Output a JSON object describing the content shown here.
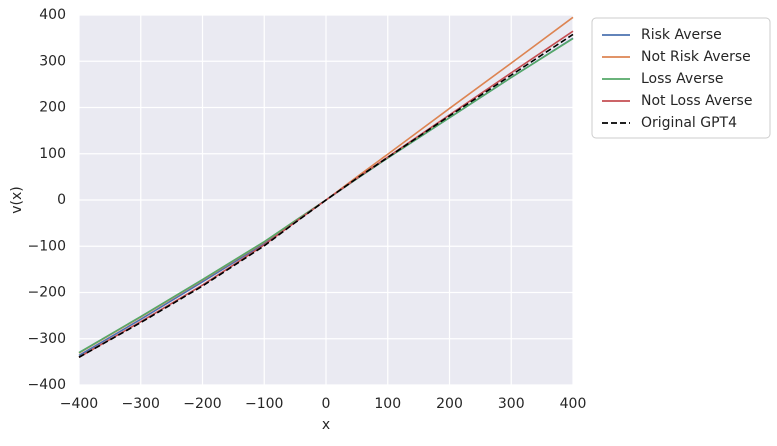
{
  "chart_data": {
    "type": "line",
    "xlabel": "x",
    "ylabel": "v(x)",
    "x": [
      -400,
      -300,
      -200,
      -100,
      -50,
      0,
      50,
      100,
      200,
      300,
      400
    ],
    "series": [
      {
        "name": "Risk Averse",
        "color": "#4c72b0",
        "linestyle": "solid",
        "values": [
          -336,
          -258,
          -177,
          -94,
          -46,
          0,
          46,
          91,
          178,
          265,
          350
        ]
      },
      {
        "name": "Not Risk Averse",
        "color": "#dd8452",
        "linestyle": "solid",
        "values": [
          -331,
          -253,
          -173,
          -91,
          -45,
          0,
          50,
          99,
          198,
          296,
          395
        ]
      },
      {
        "name": "Loss Averse",
        "color": "#55a868",
        "linestyle": "solid",
        "values": [
          -330,
          -252,
          -172,
          -90,
          -45,
          0,
          46,
          91,
          178,
          265,
          349
        ]
      },
      {
        "name": "Not Loss Averse",
        "color": "#c44e52",
        "linestyle": "solid",
        "values": [
          -340,
          -263,
          -184,
          -97,
          -48,
          0,
          47,
          93,
          184,
          275,
          365
        ]
      },
      {
        "name": "Original GPT4",
        "color": "#000000",
        "linestyle": "dashed",
        "values": [
          -340,
          -265,
          -186,
          -99,
          -49,
          0,
          47,
          92,
          182,
          270,
          358
        ]
      }
    ],
    "xlim": [
      -400,
      400
    ],
    "ylim": [
      -400,
      400
    ],
    "xticks": [
      {
        "value": -400,
        "label": "−400"
      },
      {
        "value": -300,
        "label": "−300"
      },
      {
        "value": -200,
        "label": "−200"
      },
      {
        "value": -100,
        "label": "−100"
      },
      0,
      100,
      200,
      300,
      400
    ],
    "yticks": [
      {
        "value": -400,
        "label": "−400"
      },
      {
        "value": -300,
        "label": "−300"
      },
      {
        "value": -200,
        "label": "−200"
      },
      {
        "value": -100,
        "label": "−100"
      },
      0,
      100,
      200,
      300,
      400
    ],
    "grid": true,
    "legend": "outside-upper-right"
  }
}
